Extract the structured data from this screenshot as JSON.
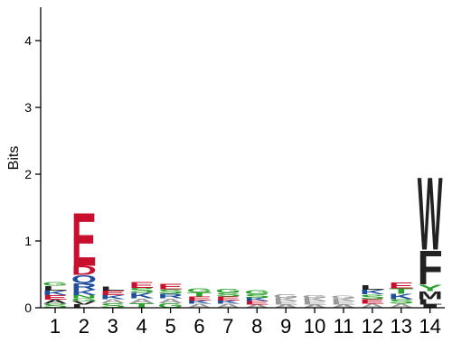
{
  "chart_data": {
    "type": "sequence-logo",
    "ylabel": "Bits",
    "ylim": [
      0,
      4.5
    ],
    "y_ticks": [
      "0",
      "1",
      "2",
      "3",
      "4"
    ],
    "positions": [
      "1",
      "2",
      "3",
      "4",
      "5",
      "6",
      "7",
      "8",
      "9",
      "10",
      "11",
      "12",
      "13",
      "14"
    ],
    "colors": {
      "acidic": "#c8102e",
      "polar": "#2ca02c",
      "basic": "#1f4e9c",
      "hydrophobic": "#222222",
      "neutral": "#9a9a9a"
    },
    "columns": [
      {
        "position": "1",
        "total_bits": 0.38,
        "letters": [
          {
            "aa": "S",
            "bits": 0.06,
            "color": "polar"
          },
          {
            "aa": "A",
            "bits": 0.06,
            "color": "hydrophobic"
          },
          {
            "aa": "E",
            "bits": 0.07,
            "color": "acidic"
          },
          {
            "aa": "K",
            "bits": 0.07,
            "color": "basic"
          },
          {
            "aa": "L",
            "bits": 0.07,
            "color": "hydrophobic"
          },
          {
            "aa": "G",
            "bits": 0.05,
            "color": "polar"
          }
        ]
      },
      {
        "position": "2",
        "total_bits": 1.45,
        "letters": [
          {
            "aa": "L",
            "bits": 0.05,
            "color": "hydrophobic"
          },
          {
            "aa": "V",
            "bits": 0.05,
            "color": "hydrophobic"
          },
          {
            "aa": "G",
            "bits": 0.04,
            "color": "polar"
          },
          {
            "aa": "N",
            "bits": 0.05,
            "color": "polar"
          },
          {
            "aa": "K",
            "bits": 0.08,
            "color": "basic"
          },
          {
            "aa": "R",
            "bits": 0.1,
            "color": "basic"
          },
          {
            "aa": "Q",
            "bits": 0.12,
            "color": "basic"
          },
          {
            "aa": "D",
            "bits": 0.14,
            "color": "acidic"
          },
          {
            "aa": "E",
            "bits": 0.82,
            "color": "acidic"
          }
        ]
      },
      {
        "position": "3",
        "total_bits": 0.32,
        "letters": [
          {
            "aa": "S",
            "bits": 0.07,
            "color": "polar"
          },
          {
            "aa": "A",
            "bits": 0.06,
            "color": "neutral"
          },
          {
            "aa": "K",
            "bits": 0.06,
            "color": "basic"
          },
          {
            "aa": "E",
            "bits": 0.07,
            "color": "acidic"
          },
          {
            "aa": "L",
            "bits": 0.06,
            "color": "hydrophobic"
          }
        ]
      },
      {
        "position": "4",
        "total_bits": 0.39,
        "letters": [
          {
            "aa": "T",
            "bits": 0.07,
            "color": "polar"
          },
          {
            "aa": "A",
            "bits": 0.07,
            "color": "neutral"
          },
          {
            "aa": "K",
            "bits": 0.08,
            "color": "basic"
          },
          {
            "aa": "S",
            "bits": 0.08,
            "color": "polar"
          },
          {
            "aa": "E",
            "bits": 0.09,
            "color": "acidic"
          }
        ]
      },
      {
        "position": "5",
        "total_bits": 0.36,
        "letters": [
          {
            "aa": "G",
            "bits": 0.07,
            "color": "polar"
          },
          {
            "aa": "A",
            "bits": 0.07,
            "color": "neutral"
          },
          {
            "aa": "R",
            "bits": 0.07,
            "color": "basic"
          },
          {
            "aa": "S",
            "bits": 0.07,
            "color": "polar"
          },
          {
            "aa": "E",
            "bits": 0.08,
            "color": "acidic"
          }
        ]
      },
      {
        "position": "6",
        "total_bits": 0.29,
        "letters": [
          {
            "aa": "A",
            "bits": 0.06,
            "color": "neutral"
          },
          {
            "aa": "K",
            "bits": 0.05,
            "color": "basic"
          },
          {
            "aa": "E",
            "bits": 0.06,
            "color": "acidic"
          },
          {
            "aa": "T",
            "bits": 0.06,
            "color": "polar"
          },
          {
            "aa": "G",
            "bits": 0.06,
            "color": "polar"
          }
        ]
      },
      {
        "position": "7",
        "total_bits": 0.28,
        "letters": [
          {
            "aa": "A",
            "bits": 0.06,
            "color": "neutral"
          },
          {
            "aa": "K",
            "bits": 0.05,
            "color": "basic"
          },
          {
            "aa": "E",
            "bits": 0.06,
            "color": "acidic"
          },
          {
            "aa": "S",
            "bits": 0.05,
            "color": "polar"
          },
          {
            "aa": "G",
            "bits": 0.06,
            "color": "polar"
          }
        ]
      },
      {
        "position": "8",
        "total_bits": 0.26,
        "letters": [
          {
            "aa": "A",
            "bits": 0.05,
            "color": "neutral"
          },
          {
            "aa": "E",
            "bits": 0.05,
            "color": "acidic"
          },
          {
            "aa": "K",
            "bits": 0.05,
            "color": "basic"
          },
          {
            "aa": "S",
            "bits": 0.05,
            "color": "polar"
          },
          {
            "aa": "G",
            "bits": 0.06,
            "color": "polar"
          }
        ]
      },
      {
        "position": "9",
        "total_bits": 0.2,
        "letters": [
          {
            "aa": "A",
            "bits": 0.05,
            "color": "neutral"
          },
          {
            "aa": "E",
            "bits": 0.05,
            "color": "neutral"
          },
          {
            "aa": "K",
            "bits": 0.05,
            "color": "neutral"
          },
          {
            "aa": "G",
            "bits": 0.05,
            "color": "neutral"
          }
        ]
      },
      {
        "position": "10",
        "total_bits": 0.19,
        "letters": [
          {
            "aa": "A",
            "bits": 0.05,
            "color": "neutral"
          },
          {
            "aa": "E",
            "bits": 0.05,
            "color": "neutral"
          },
          {
            "aa": "K",
            "bits": 0.05,
            "color": "neutral"
          },
          {
            "aa": "G",
            "bits": 0.04,
            "color": "neutral"
          }
        ]
      },
      {
        "position": "11",
        "total_bits": 0.18,
        "letters": [
          {
            "aa": "A",
            "bits": 0.05,
            "color": "neutral"
          },
          {
            "aa": "E",
            "bits": 0.05,
            "color": "neutral"
          },
          {
            "aa": "K",
            "bits": 0.04,
            "color": "neutral"
          },
          {
            "aa": "G",
            "bits": 0.04,
            "color": "neutral"
          }
        ]
      },
      {
        "position": "12",
        "total_bits": 0.34,
        "letters": [
          {
            "aa": "A",
            "bits": 0.06,
            "color": "neutral"
          },
          {
            "aa": "E",
            "bits": 0.07,
            "color": "acidic"
          },
          {
            "aa": "S",
            "bits": 0.07,
            "color": "polar"
          },
          {
            "aa": "K",
            "bits": 0.07,
            "color": "basic"
          },
          {
            "aa": "L",
            "bits": 0.07,
            "color": "hydrophobic"
          }
        ]
      },
      {
        "position": "13",
        "total_bits": 0.38,
        "letters": [
          {
            "aa": "A",
            "bits": 0.06,
            "color": "neutral"
          },
          {
            "aa": "S",
            "bits": 0.07,
            "color": "polar"
          },
          {
            "aa": "K",
            "bits": 0.08,
            "color": "basic"
          },
          {
            "aa": "T",
            "bits": 0.08,
            "color": "polar"
          },
          {
            "aa": "E",
            "bits": 0.09,
            "color": "acidic"
          }
        ]
      },
      {
        "position": "14",
        "total_bits": 1.99,
        "letters": [
          {
            "aa": "I",
            "bits": 0.05,
            "color": "hydrophobic"
          },
          {
            "aa": "L",
            "bits": 0.08,
            "color": "hydrophobic"
          },
          {
            "aa": "M",
            "bits": 0.12,
            "color": "hydrophobic"
          },
          {
            "aa": "Y",
            "bits": 0.1,
            "color": "polar"
          },
          {
            "aa": "F",
            "bits": 0.52,
            "color": "hydrophobic"
          },
          {
            "aa": "W",
            "bits": 1.12,
            "color": "hydrophobic"
          }
        ]
      }
    ]
  }
}
